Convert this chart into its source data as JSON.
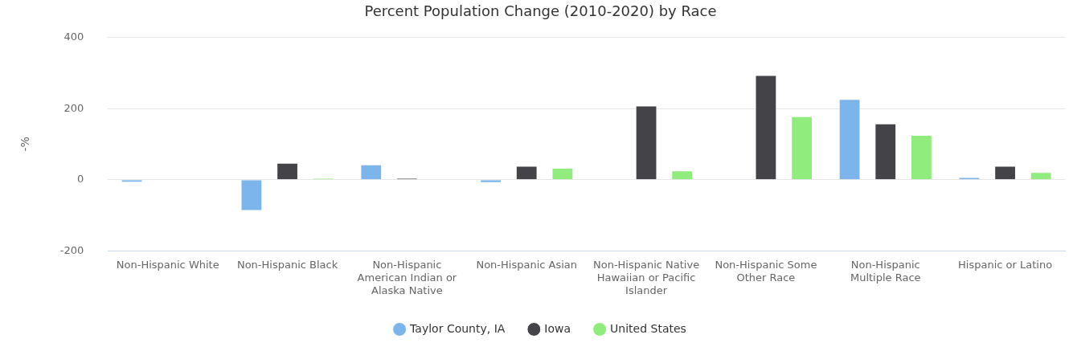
{
  "chart_data": {
    "type": "bar",
    "title": "Percent Population Change (2010-2020) by Race",
    "ylabel": "-%",
    "categories": [
      "Non-Hispanic White",
      "Non-Hispanic Black",
      "Non-Hispanic American Indian or Alaska Native",
      "Non-Hispanic Asian",
      "Non-Hispanic Native Hawaiian or Pacific Islander",
      "Non-Hispanic Some Other Race",
      "Non-Hispanic Multiple Race",
      "Hispanic or Latino"
    ],
    "series": [
      {
        "name": "Taylor County, IA",
        "color": "#7cb5ec",
        "values": [
          -8,
          -88,
          43,
          -9,
          0,
          0,
          227,
          7
        ]
      },
      {
        "name": "Iowa",
        "color": "#434348",
        "values": [
          0,
          47,
          4,
          39,
          208,
          294,
          158,
          39
        ]
      },
      {
        "name": "United States",
        "color": "#90ed7d",
        "values": [
          0,
          4,
          0,
          33,
          26,
          178,
          126,
          21
        ]
      }
    ],
    "ylim": [
      -200,
      400
    ],
    "yticks": [
      -200,
      0,
      200,
      400
    ],
    "grid": "y",
    "legend": "bottom",
    "marker": "circle"
  }
}
